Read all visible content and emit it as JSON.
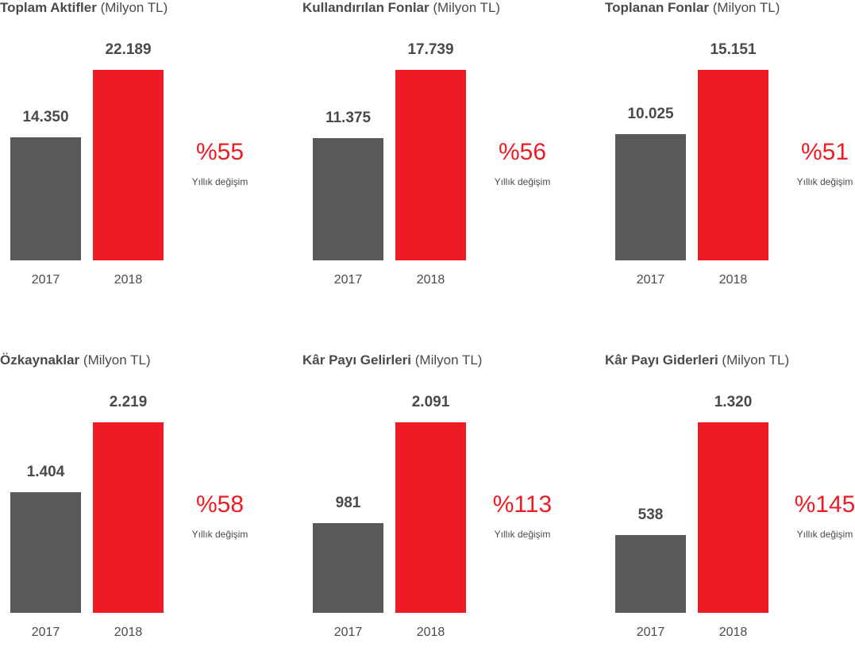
{
  "colors": {
    "y2017": "#58595b",
    "y2018": "#ed1c24",
    "text": "#4a4a4c"
  },
  "chart_data": [
    {
      "type": "bar",
      "title_bold": "Toplam Aktifler",
      "title_unit": "(Milyon TL)",
      "categories": [
        "2017",
        "2018"
      ],
      "values": [
        14350,
        22189
      ],
      "value_labels": [
        "14.350",
        "22.189"
      ],
      "change": "%55",
      "change_label": "Yıllık değişim"
    },
    {
      "type": "bar",
      "title_bold": "Kullandırılan Fonlar",
      "title_unit": "(Milyon TL)",
      "categories": [
        "2017",
        "2018"
      ],
      "values": [
        11375,
        17739
      ],
      "value_labels": [
        "11.375",
        "17.739"
      ],
      "change": "%56",
      "change_label": "Yıllık değişim"
    },
    {
      "type": "bar",
      "title_bold": "Toplanan Fonlar",
      "title_unit": "(Milyon TL)",
      "categories": [
        "2017",
        "2018"
      ],
      "values": [
        10025,
        15151
      ],
      "value_labels": [
        "10.025",
        "15.151"
      ],
      "change": "%51",
      "change_label": "Yıllık değişim"
    },
    {
      "type": "bar",
      "title_bold": "Özkaynaklar",
      "title_unit": "(Milyon TL)",
      "categories": [
        "2017",
        "2018"
      ],
      "values": [
        1404,
        2219
      ],
      "value_labels": [
        "1.404",
        "2.219"
      ],
      "change": "%58",
      "change_label": "Yıllık değişim"
    },
    {
      "type": "bar",
      "title_bold": "Kâr Payı Gelirleri",
      "title_unit": "(Milyon TL)",
      "categories": [
        "2017",
        "2018"
      ],
      "values": [
        981,
        2091
      ],
      "value_labels": [
        "981",
        "2.091"
      ],
      "change": "%113",
      "change_label": "Yıllık değişim"
    },
    {
      "type": "bar",
      "title_bold": "Kâr Payı Giderleri",
      "title_unit": "(Milyon TL)",
      "categories": [
        "2017",
        "2018"
      ],
      "values": [
        538,
        1320
      ],
      "value_labels": [
        "538",
        "1.320"
      ],
      "change": "%145",
      "change_label": "Yıllık değişim"
    }
  ]
}
